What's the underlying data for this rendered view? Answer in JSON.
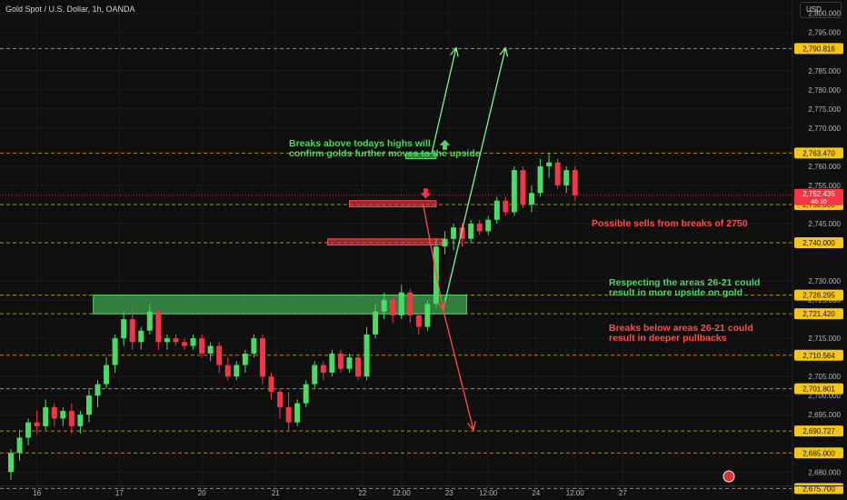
{
  "header": {
    "title": "Gold Spot / U.S. Dollar, 1h, OANDA",
    "currency": "USD"
  },
  "annotations": [
    {
      "id": "breaks-above",
      "color": "green",
      "lines": [
        "Breaks above todays highs will",
        "confirm golds further moves to the upside"
      ]
    },
    {
      "id": "possible-sells",
      "color": "red",
      "lines": [
        "Possible sells from breaks of 2750"
      ]
    },
    {
      "id": "respecting",
      "color": "green",
      "lines": [
        "Respecting the areas 26-21 could",
        "result in more upside on gold"
      ]
    },
    {
      "id": "breaks-below",
      "color": "red",
      "lines": [
        "Breaks below areas 26-21 could",
        "result in deeper pullbacks"
      ]
    }
  ],
  "chart_data": {
    "type": "candlestick",
    "symbol": "Gold Spot / U.S. Dollar",
    "interval": "1h",
    "ylim": [
      2676.5,
      2803.5
    ],
    "y_ticks": [
      "2,800.000",
      "2,795.000",
      "2,785.000",
      "2,780.000",
      "2,775.000",
      "2,770.000",
      "2,760.000",
      "2,755.000",
      "2,745.000",
      "2,730.000",
      "2,725.000",
      "2,715.000",
      "2,705.000",
      "2,700.000",
      "2,695.000",
      "2,680.000"
    ],
    "x_ticks": [
      {
        "label": "16",
        "t": 3
      },
      {
        "label": "17",
        "t": 12.5
      },
      {
        "label": "20",
        "t": 22
      },
      {
        "label": "21",
        "t": 30.5
      },
      {
        "label": "22",
        "t": 40.5
      },
      {
        "label": "12:00",
        "t": 45
      },
      {
        "label": "23",
        "t": 50.5
      },
      {
        "label": "12:00",
        "t": 55
      },
      {
        "label": "24",
        "t": 60.5
      },
      {
        "label": "12:00",
        "t": 65
      },
      {
        "label": "27",
        "t": 70.5
      }
    ],
    "levels": [
      {
        "value": 2790.816,
        "label": "2,790.816"
      },
      {
        "value": 2763.47,
        "label": "2,763.470"
      },
      {
        "value": 2750.0,
        "label": "2,750.000"
      },
      {
        "value": 2740.0,
        "label": "2,740.000"
      },
      {
        "value": 2726.295,
        "label": "2,726.295"
      },
      {
        "value": 2721.42,
        "label": "2,721.420"
      },
      {
        "value": 2710.564,
        "label": "2,710.564"
      },
      {
        "value": 2701.801,
        "label": "2,701.801"
      },
      {
        "value": 2690.727,
        "label": "2,690.727"
      },
      {
        "value": 2685.0,
        "label": "2,685.000"
      },
      {
        "value": 2675.7,
        "label": "2,675.700"
      }
    ],
    "current_price": {
      "value": 2752.435,
      "label": "2,752.435",
      "countdown": "46:10"
    },
    "zones": [
      {
        "name": "demand-zone-26-21",
        "color": "green",
        "t0": 9.5,
        "t1": 52.5,
        "y_top": 2726.3,
        "y_bottom": 2721.4
      },
      {
        "name": "resistance-box-highs",
        "color": "green",
        "t0": 45.5,
        "t1": 49,
        "y_top": 2763.4,
        "y_bottom": 2762.0
      },
      {
        "name": "sell-zone-2750",
        "color": "red",
        "t0": 39,
        "t1": 49,
        "y_top": 2751.0,
        "y_bottom": 2749.4
      },
      {
        "name": "sell-zone-2740",
        "color": "red",
        "t0": 36.5,
        "t1": 50,
        "y_top": 2741.0,
        "y_bottom": 2739.4
      }
    ],
    "arrows": [
      {
        "name": "bull-arrow-1",
        "color": "green",
        "from": [
          48.5,
          2763.5
        ],
        "to": [
          51.3,
          2791.0
        ]
      },
      {
        "name": "bull-arrow-2",
        "color": "green",
        "from": [
          49.8,
          2722.5
        ],
        "to": [
          57.0,
          2791.0
        ]
      },
      {
        "name": "bear-arrow-1",
        "color": "red",
        "from": [
          47.5,
          2750.0
        ],
        "to": [
          49.8,
          2722.5
        ]
      },
      {
        "name": "bear-arrow-2",
        "color": "red",
        "from": [
          49.8,
          2722.5
        ],
        "to": [
          53.3,
          2691.0
        ]
      }
    ],
    "markers": [
      {
        "name": "up-marker",
        "color": "green",
        "t": 50,
        "y": 2765.5,
        "dir": "up"
      },
      {
        "name": "down-marker",
        "color": "red",
        "t": 47.8,
        "y": 2753.0,
        "dir": "down"
      }
    ],
    "candles": [
      {
        "o": 2680.0,
        "h": 2686.0,
        "l": 2678.0,
        "c": 2685.0
      },
      {
        "o": 2685.0,
        "h": 2691.0,
        "l": 2683.0,
        "c": 2689.0
      },
      {
        "o": 2689.0,
        "h": 2694.0,
        "l": 2687.0,
        "c": 2693.0
      },
      {
        "o": 2693.0,
        "h": 2696.0,
        "l": 2690.0,
        "c": 2692.0
      },
      {
        "o": 2692.0,
        "h": 2699.0,
        "l": 2691.0,
        "c": 2697.0
      },
      {
        "o": 2697.0,
        "h": 2698.0,
        "l": 2692.0,
        "c": 2694.0
      },
      {
        "o": 2694.0,
        "h": 2697.0,
        "l": 2692.0,
        "c": 2696.0
      },
      {
        "o": 2696.0,
        "h": 2698.0,
        "l": 2690.0,
        "c": 2692.0
      },
      {
        "o": 2692.0,
        "h": 2696.0,
        "l": 2690.0,
        "c": 2695.0
      },
      {
        "o": 2695.0,
        "h": 2702.0,
        "l": 2693.0,
        "c": 2700.0
      },
      {
        "o": 2700.0,
        "h": 2704.0,
        "l": 2697.0,
        "c": 2703.0
      },
      {
        "o": 2703.0,
        "h": 2710.0,
        "l": 2702.0,
        "c": 2708.0
      },
      {
        "o": 2708.0,
        "h": 2716.0,
        "l": 2706.0,
        "c": 2715.0
      },
      {
        "o": 2715.0,
        "h": 2722.0,
        "l": 2713.0,
        "c": 2720.0
      },
      {
        "o": 2720.0,
        "h": 2724.0,
        "l": 2712.0,
        "c": 2714.0
      },
      {
        "o": 2714.0,
        "h": 2718.0,
        "l": 2712.0,
        "c": 2717.0
      },
      {
        "o": 2717.0,
        "h": 2724.0,
        "l": 2716.0,
        "c": 2722.0
      },
      {
        "o": 2722.0,
        "h": 2722.5,
        "l": 2712.0,
        "c": 2714.0
      },
      {
        "o": 2714.0,
        "h": 2716.0,
        "l": 2712.0,
        "c": 2715.0
      },
      {
        "o": 2715.0,
        "h": 2716.0,
        "l": 2713.0,
        "c": 2714.0
      },
      {
        "o": 2714.0,
        "h": 2715.0,
        "l": 2712.0,
        "c": 2713.0
      },
      {
        "o": 2713.0,
        "h": 2716.0,
        "l": 2712.0,
        "c": 2715.0
      },
      {
        "o": 2715.0,
        "h": 2716.0,
        "l": 2710.0,
        "c": 2711.0
      },
      {
        "o": 2711.0,
        "h": 2714.0,
        "l": 2709.0,
        "c": 2713.0
      },
      {
        "o": 2713.0,
        "h": 2714.0,
        "l": 2706.0,
        "c": 2708.0
      },
      {
        "o": 2708.0,
        "h": 2710.0,
        "l": 2704.0,
        "c": 2705.0
      },
      {
        "o": 2705.0,
        "h": 2709.0,
        "l": 2704.0,
        "c": 2708.0
      },
      {
        "o": 2708.0,
        "h": 2712.0,
        "l": 2706.0,
        "c": 2711.0
      },
      {
        "o": 2711.0,
        "h": 2716.0,
        "l": 2710.0,
        "c": 2715.0
      },
      {
        "o": 2715.0,
        "h": 2716.0,
        "l": 2703.0,
        "c": 2705.0
      },
      {
        "o": 2705.0,
        "h": 2706.0,
        "l": 2699.0,
        "c": 2701.0
      },
      {
        "o": 2701.0,
        "h": 2702.0,
        "l": 2694.0,
        "c": 2697.0
      },
      {
        "o": 2697.0,
        "h": 2701.0,
        "l": 2691.0,
        "c": 2693.0
      },
      {
        "o": 2693.0,
        "h": 2699.0,
        "l": 2692.0,
        "c": 2698.0
      },
      {
        "o": 2698.0,
        "h": 2704.0,
        "l": 2697.0,
        "c": 2703.0
      },
      {
        "o": 2703.0,
        "h": 2709.0,
        "l": 2702.0,
        "c": 2708.0
      },
      {
        "o": 2708.0,
        "h": 2709.0,
        "l": 2704.0,
        "c": 2706.0
      },
      {
        "o": 2706.0,
        "h": 2712.0,
        "l": 2705.0,
        "c": 2711.0
      },
      {
        "o": 2711.0,
        "h": 2712.0,
        "l": 2706.0,
        "c": 2707.0
      },
      {
        "o": 2707.0,
        "h": 2711.0,
        "l": 2706.0,
        "c": 2710.0
      },
      {
        "o": 2710.0,
        "h": 2711.0,
        "l": 2704.0,
        "c": 2705.0
      },
      {
        "o": 2705.0,
        "h": 2718.0,
        "l": 2704.0,
        "c": 2716.0
      },
      {
        "o": 2716.0,
        "h": 2724.0,
        "l": 2715.0,
        "c": 2722.0
      },
      {
        "o": 2722.0,
        "h": 2727.0,
        "l": 2720.0,
        "c": 2725.0
      },
      {
        "o": 2725.0,
        "h": 2726.0,
        "l": 2719.0,
        "c": 2721.0
      },
      {
        "o": 2721.0,
        "h": 2729.0,
        "l": 2720.0,
        "c": 2727.0
      },
      {
        "o": 2727.0,
        "h": 2728.0,
        "l": 2719.0,
        "c": 2721.0
      },
      {
        "o": 2721.0,
        "h": 2722.0,
        "l": 2716.0,
        "c": 2718.0
      },
      {
        "o": 2718.0,
        "h": 2725.0,
        "l": 2717.0,
        "c": 2724.0
      },
      {
        "o": 2724.0,
        "h": 2741.0,
        "l": 2723.0,
        "c": 2739.0
      },
      {
        "o": 2739.0,
        "h": 2743.0,
        "l": 2737.0,
        "c": 2741.0
      },
      {
        "o": 2741.0,
        "h": 2745.0,
        "l": 2738.0,
        "c": 2744.0
      },
      {
        "o": 2744.0,
        "h": 2745.0,
        "l": 2739.0,
        "c": 2741.0
      },
      {
        "o": 2741.0,
        "h": 2746.0,
        "l": 2740.0,
        "c": 2745.0
      },
      {
        "o": 2745.0,
        "h": 2746.0,
        "l": 2742.0,
        "c": 2743.0
      },
      {
        "o": 2743.0,
        "h": 2747.0,
        "l": 2742.0,
        "c": 2746.0
      },
      {
        "o": 2746.0,
        "h": 2752.0,
        "l": 2745.0,
        "c": 2751.0
      },
      {
        "o": 2751.0,
        "h": 2752.0,
        "l": 2747.0,
        "c": 2748.0
      },
      {
        "o": 2748.0,
        "h": 2760.0,
        "l": 2747.0,
        "c": 2759.0
      },
      {
        "o": 2759.0,
        "h": 2760.0,
        "l": 2749.0,
        "c": 2750.0
      },
      {
        "o": 2750.0,
        "h": 2755.0,
        "l": 2748.0,
        "c": 2753.0
      },
      {
        "o": 2753.0,
        "h": 2762.0,
        "l": 2752.0,
        "c": 2760.0
      },
      {
        "o": 2760.0,
        "h": 2763.5,
        "l": 2757.0,
        "c": 2761.0
      },
      {
        "o": 2761.0,
        "h": 2762.0,
        "l": 2754.0,
        "c": 2755.0
      },
      {
        "o": 2755.0,
        "h": 2760.0,
        "l": 2753.0,
        "c": 2759.0
      },
      {
        "o": 2759.0,
        "h": 2760.0,
        "l": 2751.0,
        "c": 2752.4
      }
    ]
  }
}
